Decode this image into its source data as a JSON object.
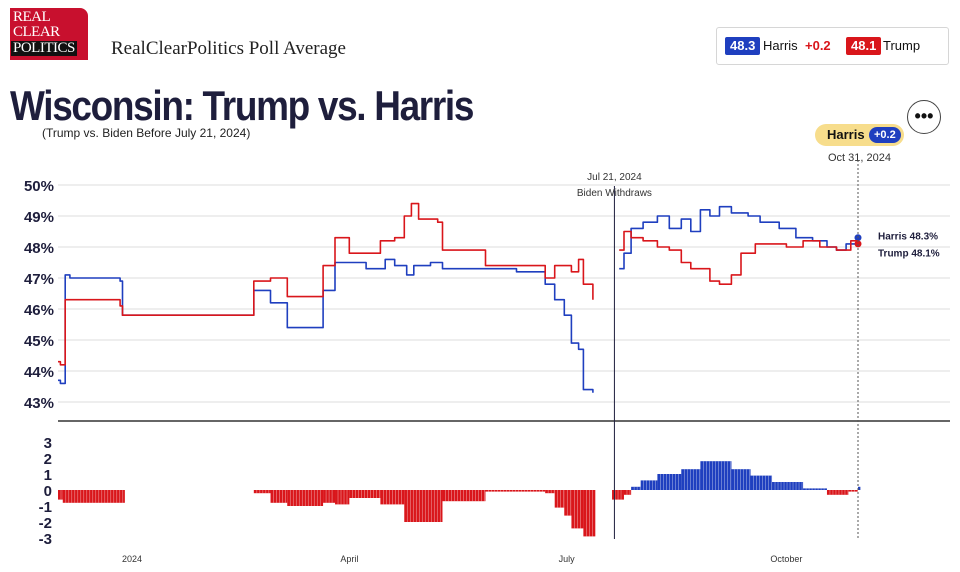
{
  "header": {
    "logo_lines": [
      "REAL",
      "CLEAR",
      "POLITICS"
    ],
    "brand": "RealClearPolitics Poll Average",
    "title": "Wisconsin: Trump vs. Harris",
    "subtitle": "(Trump vs. Biden Before July 21, 2024)",
    "menu_icon": "ellipsis-icon"
  },
  "average_box": {
    "harris": {
      "value": "48.3",
      "name": "Harris",
      "lead": "+0.2"
    },
    "trump": {
      "value": "48.1",
      "name": "Trump"
    }
  },
  "leader_badge": {
    "name": "Harris",
    "lead": "+0.2",
    "date": "Oct 31, 2024"
  },
  "colors": {
    "dem": "#1f3fbf",
    "rep": "#d9161b",
    "grid": "#dddddd",
    "badge": "#f7dd8c"
  },
  "chart_data": [
    {
      "type": "line",
      "x_axis": "date",
      "ylim": [
        43,
        50
      ],
      "y_ticks": [
        "43%",
        "44%",
        "45%",
        "46%",
        "47%",
        "48%",
        "49%",
        "50%"
      ],
      "annotation": {
        "date_label": "Jul 21, 2024",
        "text": "Biden Withdraws"
      },
      "end_labels": {
        "dem": "Harris 48.3%",
        "rep": "Trump 48.1%"
      },
      "series": [
        {
          "name": "Harris",
          "color": "#1f3fbf",
          "points": [
            [
              "2023-12-01",
              43.7
            ],
            [
              "2023-12-02",
              43.6
            ],
            [
              "2023-12-04",
              47.1
            ],
            [
              "2023-12-06",
              47.0
            ],
            [
              "2023-12-26",
              47.0
            ],
            [
              "2023-12-27",
              46.9
            ],
            [
              "2023-12-28",
              45.8
            ],
            [
              "2024-01-10",
              45.8
            ],
            [
              "2024-02-20",
              45.8
            ],
            [
              "2024-02-21",
              46.6
            ],
            [
              "2024-02-27",
              46.6
            ],
            [
              "2024-02-28",
              46.2
            ],
            [
              "2024-03-05",
              46.2
            ],
            [
              "2024-03-06",
              45.4
            ],
            [
              "2024-03-20",
              45.4
            ],
            [
              "2024-03-21",
              46.6
            ],
            [
              "2024-03-25",
              46.6
            ],
            [
              "2024-03-26",
              47.5
            ],
            [
              "2024-04-06",
              47.5
            ],
            [
              "2024-04-08",
              47.3
            ],
            [
              "2024-04-14",
              47.3
            ],
            [
              "2024-04-16",
              47.6
            ],
            [
              "2024-04-20",
              47.4
            ],
            [
              "2024-04-25",
              47.1
            ],
            [
              "2024-04-28",
              47.4
            ],
            [
              "2024-05-05",
              47.5
            ],
            [
              "2024-05-10",
              47.3
            ],
            [
              "2024-06-01",
              47.3
            ],
            [
              "2024-06-10",
              47.2
            ],
            [
              "2024-06-18",
              47.2
            ],
            [
              "2024-06-22",
              46.8
            ],
            [
              "2024-06-26",
              46.3
            ],
            [
              "2024-06-30",
              45.8
            ],
            [
              "2024-07-03",
              44.9
            ],
            [
              "2024-07-06",
              44.7
            ],
            [
              "2024-07-08",
              43.4
            ],
            [
              "2024-07-12",
              43.3
            ],
            [
              "2024-07-23",
              47.3
            ],
            [
              "2024-07-25",
              47.8
            ],
            [
              "2024-07-28",
              48.6
            ],
            [
              "2024-08-02",
              48.8
            ],
            [
              "2024-08-08",
              49.0
            ],
            [
              "2024-08-13",
              48.6
            ],
            [
              "2024-08-18",
              48.9
            ],
            [
              "2024-08-22",
              48.5
            ],
            [
              "2024-08-26",
              49.2
            ],
            [
              "2024-08-30",
              49.0
            ],
            [
              "2024-09-03",
              49.3
            ],
            [
              "2024-09-08",
              49.1
            ],
            [
              "2024-09-15",
              49.0
            ],
            [
              "2024-09-20",
              48.8
            ],
            [
              "2024-09-28",
              48.6
            ],
            [
              "2024-10-05",
              48.3
            ],
            [
              "2024-10-12",
              48.2
            ],
            [
              "2024-10-18",
              48.0
            ],
            [
              "2024-10-22",
              47.9
            ],
            [
              "2024-10-26",
              48.1
            ],
            [
              "2024-10-31",
              48.3
            ]
          ]
        },
        {
          "name": "Trump",
          "color": "#d9161b",
          "points": [
            [
              "2023-12-01",
              44.3
            ],
            [
              "2023-12-02",
              44.2
            ],
            [
              "2023-12-04",
              46.3
            ],
            [
              "2023-12-06",
              46.3
            ],
            [
              "2023-12-26",
              46.3
            ],
            [
              "2023-12-27",
              46.1
            ],
            [
              "2023-12-28",
              45.8
            ],
            [
              "2024-01-10",
              45.8
            ],
            [
              "2024-02-20",
              45.8
            ],
            [
              "2024-02-21",
              46.9
            ],
            [
              "2024-02-27",
              46.9
            ],
            [
              "2024-02-28",
              47.0
            ],
            [
              "2024-03-05",
              47.0
            ],
            [
              "2024-03-06",
              46.4
            ],
            [
              "2024-03-20",
              46.4
            ],
            [
              "2024-03-21",
              47.4
            ],
            [
              "2024-03-25",
              47.4
            ],
            [
              "2024-03-26",
              48.3
            ],
            [
              "2024-03-31",
              48.3
            ],
            [
              "2024-04-01",
              47.8
            ],
            [
              "2024-04-10",
              47.8
            ],
            [
              "2024-04-14",
              48.2
            ],
            [
              "2024-04-20",
              48.3
            ],
            [
              "2024-04-24",
              49.0
            ],
            [
              "2024-04-27",
              49.4
            ],
            [
              "2024-04-30",
              48.9
            ],
            [
              "2024-05-08",
              48.8
            ],
            [
              "2024-05-10",
              47.9
            ],
            [
              "2024-05-25",
              47.9
            ],
            [
              "2024-05-28",
              47.4
            ],
            [
              "2024-06-10",
              47.4
            ],
            [
              "2024-06-18",
              47.4
            ],
            [
              "2024-06-22",
              47.0
            ],
            [
              "2024-06-26",
              47.4
            ],
            [
              "2024-06-30",
              47.4
            ],
            [
              "2024-07-03",
              47.2
            ],
            [
              "2024-07-06",
              47.6
            ],
            [
              "2024-07-08",
              46.8
            ],
            [
              "2024-07-10",
              46.8
            ],
            [
              "2024-07-12",
              46.3
            ],
            [
              "2024-07-23",
              47.9
            ],
            [
              "2024-07-25",
              48.5
            ],
            [
              "2024-07-28",
              48.3
            ],
            [
              "2024-08-02",
              48.2
            ],
            [
              "2024-08-08",
              48.0
            ],
            [
              "2024-08-13",
              47.9
            ],
            [
              "2024-08-18",
              47.5
            ],
            [
              "2024-08-22",
              47.3
            ],
            [
              "2024-08-26",
              47.3
            ],
            [
              "2024-08-30",
              46.9
            ],
            [
              "2024-09-03",
              46.8
            ],
            [
              "2024-09-08",
              47.1
            ],
            [
              "2024-09-12",
              47.8
            ],
            [
              "2024-09-18",
              48.1
            ],
            [
              "2024-09-25",
              48.1
            ],
            [
              "2024-10-01",
              48.0
            ],
            [
              "2024-10-08",
              48.2
            ],
            [
              "2024-10-15",
              48.0
            ],
            [
              "2024-10-22",
              47.9
            ],
            [
              "2024-10-28",
              48.2
            ],
            [
              "2024-10-31",
              48.1
            ]
          ]
        }
      ]
    },
    {
      "type": "bar",
      "x_axis": "date",
      "ylim": [
        -3,
        3
      ],
      "y_ticks": [
        "-3",
        "-2",
        "-1",
        "0",
        "1",
        "2",
        "3"
      ],
      "x_tick_labels": [
        [
          "2024-01-01",
          "2024"
        ],
        [
          "2024-04-01",
          "April"
        ],
        [
          "2024-07-01",
          "July"
        ],
        [
          "2024-10-01",
          "October"
        ]
      ],
      "segments": [
        {
          "start": "2023-12-01",
          "end": "2023-12-02",
          "value": -0.6
        },
        {
          "start": "2023-12-03",
          "end": "2023-12-28",
          "value": -0.8
        },
        {
          "start": "2023-12-29",
          "end": "2024-02-20",
          "value": 0.0
        },
        {
          "start": "2024-02-21",
          "end": "2024-02-27",
          "value": -0.2
        },
        {
          "start": "2024-02-28",
          "end": "2024-03-05",
          "value": -0.8
        },
        {
          "start": "2024-03-06",
          "end": "2024-03-20",
          "value": -1.0
        },
        {
          "start": "2024-03-21",
          "end": "2024-03-25",
          "value": -0.8
        },
        {
          "start": "2024-03-26",
          "end": "2024-03-31",
          "value": -0.9
        },
        {
          "start": "2024-04-01",
          "end": "2024-04-13",
          "value": -0.5
        },
        {
          "start": "2024-04-14",
          "end": "2024-04-23",
          "value": -0.9
        },
        {
          "start": "2024-04-24",
          "end": "2024-05-09",
          "value": -2.0
        },
        {
          "start": "2024-05-10",
          "end": "2024-05-27",
          "value": -0.7
        },
        {
          "start": "2024-05-28",
          "end": "2024-06-21",
          "value": -0.1
        },
        {
          "start": "2024-06-22",
          "end": "2024-06-25",
          "value": -0.2
        },
        {
          "start": "2024-06-26",
          "end": "2024-06-29",
          "value": -1.1
        },
        {
          "start": "2024-06-30",
          "end": "2024-07-02",
          "value": -1.6
        },
        {
          "start": "2024-07-03",
          "end": "2024-07-07",
          "value": -2.4
        },
        {
          "start": "2024-07-08",
          "end": "2024-07-12",
          "value": -2.9
        },
        {
          "start": "2024-07-20",
          "end": "2024-07-24",
          "value": -0.6
        },
        {
          "start": "2024-07-25",
          "end": "2024-07-27",
          "value": -0.3
        },
        {
          "start": "2024-07-28",
          "end": "2024-07-31",
          "value": 0.2
        },
        {
          "start": "2024-08-01",
          "end": "2024-08-07",
          "value": 0.6
        },
        {
          "start": "2024-08-08",
          "end": "2024-08-17",
          "value": 1.0
        },
        {
          "start": "2024-08-18",
          "end": "2024-08-25",
          "value": 1.3
        },
        {
          "start": "2024-08-26",
          "end": "2024-09-07",
          "value": 1.8
        },
        {
          "start": "2024-09-08",
          "end": "2024-09-15",
          "value": 1.3
        },
        {
          "start": "2024-09-16",
          "end": "2024-09-24",
          "value": 0.9
        },
        {
          "start": "2024-09-25",
          "end": "2024-10-07",
          "value": 0.5
        },
        {
          "start": "2024-10-08",
          "end": "2024-10-17",
          "value": 0.1
        },
        {
          "start": "2024-10-18",
          "end": "2024-10-26",
          "value": -0.3
        },
        {
          "start": "2024-10-27",
          "end": "2024-10-30",
          "value": -0.1
        },
        {
          "start": "2024-10-31",
          "end": "2024-10-31",
          "value": 0.2
        }
      ]
    }
  ]
}
